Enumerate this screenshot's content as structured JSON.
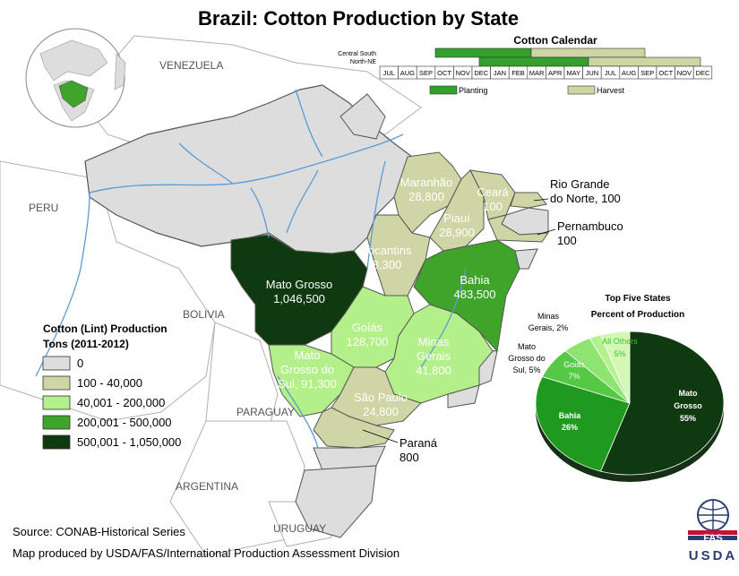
{
  "title": "Brazil: Cotton Production by State",
  "countries": {
    "venezuela": "VENEZUELA",
    "peru": "PERU",
    "bolivia": "BOLIVIA",
    "paraguay": "PARAGUAY",
    "argentina": "ARGENTINA",
    "uruguay": "URUGUAY"
  },
  "states": {
    "mato_grosso": {
      "name": "Mato Grosso",
      "value": "1,046,500"
    },
    "bahia": {
      "name": "Bahia",
      "value": "483,500"
    },
    "goias": {
      "name": "Goiás",
      "value": "128,700"
    },
    "mato_grosso_do_sul": {
      "name_line1": "Mato",
      "name_line2": "Grosso do",
      "value_line": "Sul, 91,300"
    },
    "minas_gerais": {
      "name_line1": "Minas",
      "name_line2": "Gerais",
      "value": "41,800"
    },
    "sao_paulo": {
      "name": "São Paulo",
      "value": "24,800"
    },
    "maranhao": {
      "name": "Maranhão",
      "value": "28,800"
    },
    "piaui": {
      "name": "Piauí",
      "value": "28,900"
    },
    "tocantins": {
      "name": "Tocantins",
      "value": "8,300"
    },
    "ceara": {
      "name": "Ceará",
      "value": "100"
    },
    "parana": {
      "name": "Paraná",
      "value": "800"
    },
    "rio_grande_do_norte": {
      "line1": "Rio Grande",
      "line2": "do Norte, 100"
    },
    "pernambuco": {
      "name": "Pernambuco",
      "value": "100"
    }
  },
  "calendar": {
    "title": "Cotton Calendar",
    "row_labels": [
      "Central South",
      "North-NE"
    ],
    "months_top": [
      "JUL",
      "AUG",
      "SEP",
      "OCT",
      "NOV",
      "DEC",
      "JAN",
      "FEB",
      "MAR",
      "APR",
      "MAY",
      "JUN",
      "JUL",
      "AUG",
      "SEP",
      "OCT",
      "NOV",
      "DEC"
    ],
    "planting_label": "Planting",
    "harvest_label": "Harvest",
    "planting_color": "#33a02c",
    "harvest_color": "#ced5a4"
  },
  "legend": {
    "title_line1": "Cotton (Lint) Production",
    "title_line2": "Tons (2011-2012)",
    "items": [
      {
        "label": "0",
        "color": "#dddddd"
      },
      {
        "label": "100 - 40,000",
        "color": "#cfd5a5"
      },
      {
        "label": "40,001 - 200,000",
        "color": "#b4f08a"
      },
      {
        "label": "200,001 - 500,000",
        "color": "#3fa42a"
      },
      {
        "label": "500,001 - 1,050,000",
        "color": "#0f3a10"
      }
    ]
  },
  "pie": {
    "title_line1": "Top Five States",
    "title_line2": "Percent of Production",
    "labels": {
      "mato_grosso": [
        "Mato",
        "Grosso",
        "55%"
      ],
      "bahia": [
        "Bahia",
        "26%"
      ],
      "goias": [
        "Goiás",
        "7%"
      ],
      "mato_grosso_do_sul": [
        "Mato",
        "Grosso do",
        "Sul, 5%"
      ],
      "minas_gerais": [
        "Minas",
        "Gerais, 2%"
      ],
      "all_others": [
        "All Others",
        "5%"
      ]
    },
    "slices": [
      {
        "name": "Mato Grosso",
        "percent": 55,
        "color": "#0f3a10"
      },
      {
        "name": "Bahia",
        "percent": 26,
        "color": "#1f9a1f"
      },
      {
        "name": "Goiás",
        "percent": 7,
        "color": "#55c945"
      },
      {
        "name": "Mato Grosso do Sul",
        "percent": 5,
        "color": "#8ee470"
      },
      {
        "name": "Minas Gerais",
        "percent": 2,
        "color": "#b3f28c"
      },
      {
        "name": "All Others",
        "percent": 5,
        "color": "#d3f7b5"
      }
    ]
  },
  "footer": {
    "source": "Source: CONAB-Historical Series",
    "credit": "Map produced by USDA/FAS/International Production Assessment Division",
    "logo_fas": "FAS",
    "logo_usda": "USDA"
  }
}
